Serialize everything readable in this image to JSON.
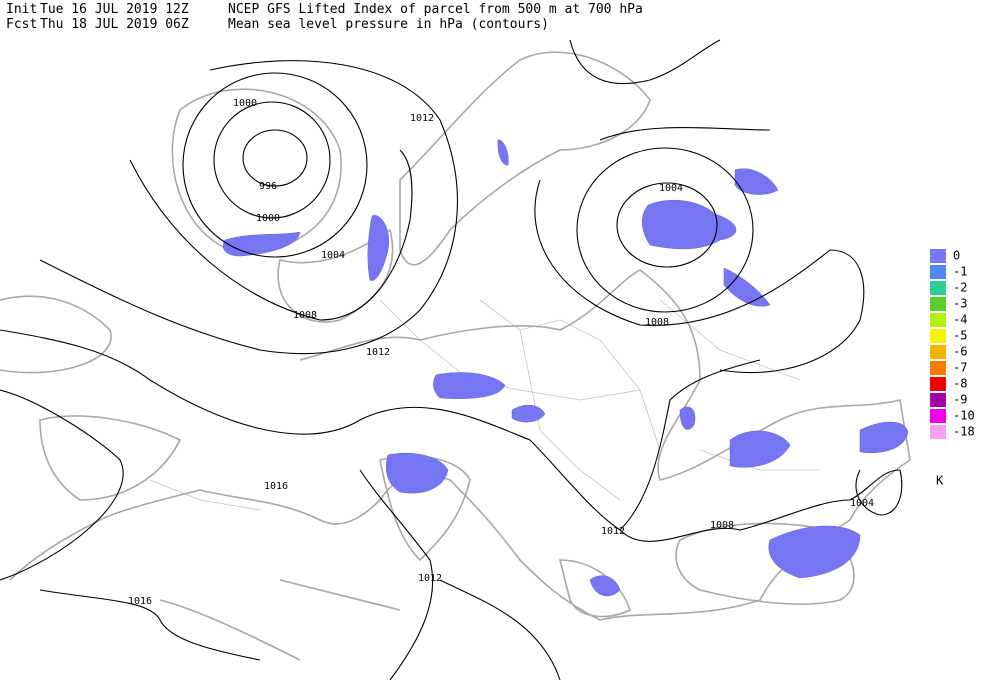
{
  "header": {
    "init_label": "Init",
    "init": "Tue 16 JUL 2019 12Z",
    "title": "NCEP GFS Lifted Index of parcel from 500 m at 700 hPa",
    "fcst_label": "Fcst",
    "fcst": "Thu 18 JUL 2019 06Z",
    "subtitle": "Mean sea level pressure in hPa (contours)"
  },
  "contour_labels": [
    "1000",
    "996",
    "1000",
    "1004",
    "1012",
    "1008",
    "1012",
    "1004",
    "1008",
    "1016",
    "1012",
    "1008",
    "1004",
    "1012",
    "1016"
  ],
  "legend": {
    "items": [
      {
        "label": "0",
        "color": "#7878f4"
      },
      {
        "label": "-1",
        "color": "#4e86f2"
      },
      {
        "label": "-2",
        "color": "#2ccf9a"
      },
      {
        "label": "-3",
        "color": "#5ad030"
      },
      {
        "label": "-4",
        "color": "#b6ee10"
      },
      {
        "label": "-5",
        "color": "#f4f400"
      },
      {
        "label": "-6",
        "color": "#f4b400"
      },
      {
        "label": "-7",
        "color": "#f47a00"
      },
      {
        "label": "-8",
        "color": "#f00000"
      },
      {
        "label": "-9",
        "color": "#a000a8"
      },
      {
        "label": "-10",
        "color": "#f000f0"
      },
      {
        "label": "-18",
        "color": "#f4a0f0"
      }
    ],
    "unit": "K"
  }
}
